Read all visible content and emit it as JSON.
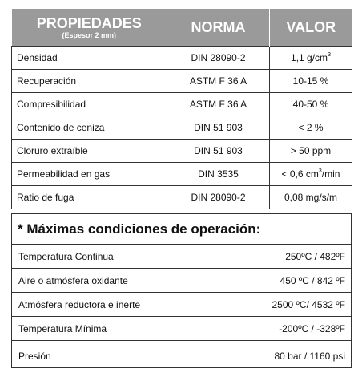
{
  "headers": {
    "propiedades": "PROPIEDADES",
    "espesor": "(Espesor 2 mm)",
    "norma": "NORMA",
    "valor": "VALOR"
  },
  "rows": [
    {
      "prop": "Densidad",
      "norma": "DIN 28090-2",
      "valor": "1,1  g/cm",
      "sup": "3",
      "unit_after": ""
    },
    {
      "prop": "Recuperación",
      "norma": "ASTM F 36 A",
      "valor": "10-15  %",
      "sup": "",
      "unit_after": ""
    },
    {
      "prop": "Compresibilidad",
      "norma": "ASTM F 36 A",
      "valor": "40-50  %",
      "sup": "",
      "unit_after": ""
    },
    {
      "prop": "Contenido de ceniza",
      "norma": "DIN 51 903",
      "valor": "< 2 %",
      "sup": "",
      "unit_after": ""
    },
    {
      "prop": "Cloruro extraíble",
      "norma": "DIN 51 903",
      "valor": "> 50 ppm",
      "sup": "",
      "unit_after": ""
    },
    {
      "prop": "Permeabilidad en gas",
      "norma": "DIN 3535",
      "valor": "< 0,6 cm",
      "sup": "3",
      "unit_after": "/min"
    },
    {
      "prop": "Ratio de fuga",
      "norma": "DIN 28090-2",
      "valor": "0,08 mg/s/m",
      "sup": "",
      "unit_after": ""
    }
  ],
  "operating": {
    "title": "* Máximas condiciones de operación:",
    "rows": [
      {
        "label": "Temperatura Continua",
        "value": "250ºC / 482ºF"
      },
      {
        "label": "Aire o atmósfera oxidante",
        "value": "450 ºC / 842 ºF"
      },
      {
        "label": "Atmósfera reductora e inerte",
        "value": "2500 ºC/ 4532 ºF"
      },
      {
        "label": "Temperatura Mínima",
        "value": "-200ºC / -328ºF"
      },
      {
        "label": "Presión",
        "value": "80 bar / 1160 psi"
      }
    ]
  }
}
